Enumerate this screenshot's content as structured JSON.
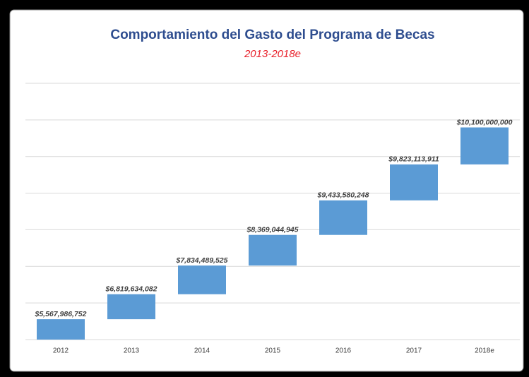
{
  "chart_data": {
    "type": "waterfall",
    "title": "Comportamiento del Gasto del Programa de Becas",
    "subtitle": "2013-2018e",
    "categories": [
      "2012",
      "2013",
      "2014",
      "2015",
      "2016",
      "2017",
      "2018e"
    ],
    "values": [
      5567986752,
      6819634082,
      7834489525,
      8369044945,
      9433580248,
      9823113911,
      10100000000
    ],
    "value_labels": [
      "$5,567,986,752",
      "$6,819,634,082",
      "$7,834,489,525",
      "$8,369,044,945",
      "$9,433,580,248",
      "$9,823,113,911",
      "$10,100,000,000"
    ],
    "color": "#5b9bd5",
    "ylim": [
      0,
      70000000000
    ],
    "yticks": [
      0,
      10000000000,
      20000000000,
      30000000000,
      40000000000,
      50000000000,
      60000000000,
      70000000000
    ],
    "grid": true
  }
}
